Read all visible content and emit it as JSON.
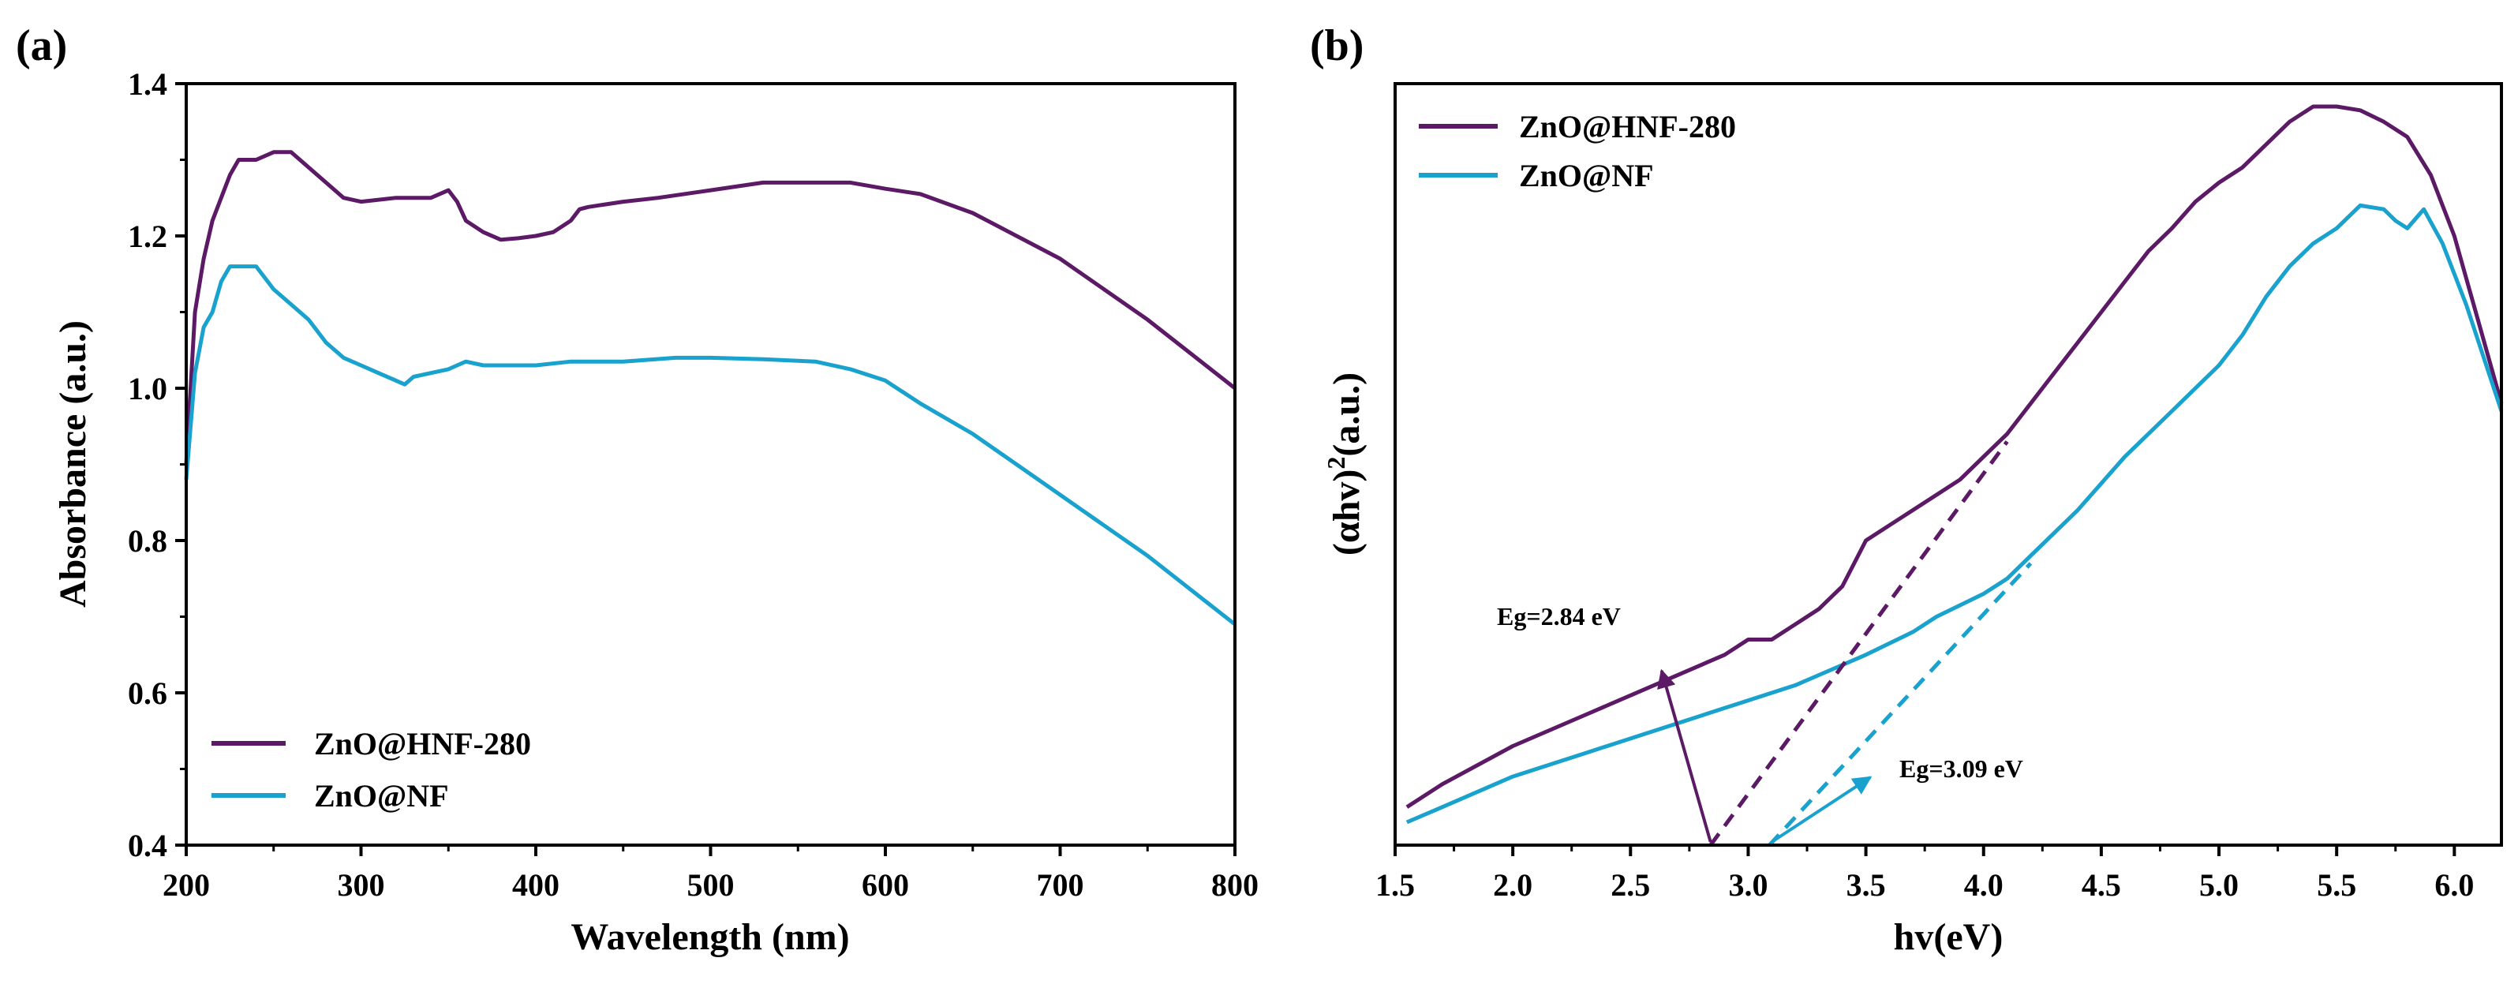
{
  "colors": {
    "purple": "#5c1a66",
    "blue": "#18a2cd",
    "axis": "#000000"
  },
  "chart_data": [
    {
      "type": "line",
      "panel_label": "(a)",
      "title": "",
      "xlabel": "Wavelength (nm)",
      "ylabel": "Absorbance (a.u.)",
      "xlim": [
        200,
        800
      ],
      "ylim": [
        0.4,
        1.4
      ],
      "xticks": [
        "200",
        "300",
        "400",
        "500",
        "600",
        "700",
        "800"
      ],
      "yticks": [
        "0.4",
        "0.6",
        "0.8",
        "1.0",
        "1.2",
        "1.4"
      ],
      "legend_position": "lower-left",
      "series": [
        {
          "name": "ZnO@HNF-280",
          "color": "#5c1a66",
          "x": [
            200,
            205,
            210,
            215,
            220,
            225,
            230,
            240,
            250,
            260,
            270,
            280,
            290,
            300,
            320,
            340,
            350,
            355,
            360,
            370,
            380,
            390,
            400,
            410,
            420,
            425,
            430,
            450,
            470,
            500,
            530,
            560,
            580,
            600,
            620,
            650,
            700,
            750,
            800
          ],
          "y": [
            0.9,
            1.1,
            1.17,
            1.22,
            1.25,
            1.28,
            1.3,
            1.3,
            1.31,
            1.31,
            1.29,
            1.27,
            1.25,
            1.245,
            1.25,
            1.25,
            1.26,
            1.245,
            1.22,
            1.205,
            1.195,
            1.197,
            1.2,
            1.205,
            1.22,
            1.235,
            1.238,
            1.245,
            1.25,
            1.26,
            1.27,
            1.27,
            1.27,
            1.262,
            1.255,
            1.23,
            1.17,
            1.09,
            1.0
          ]
        },
        {
          "name": "ZnO@NF",
          "color": "#18a2cd",
          "x": [
            200,
            205,
            210,
            215,
            220,
            225,
            230,
            240,
            250,
            260,
            270,
            280,
            290,
            300,
            310,
            320,
            325,
            330,
            340,
            350,
            355,
            360,
            370,
            380,
            390,
            400,
            420,
            450,
            480,
            500,
            530,
            560,
            580,
            600,
            620,
            650,
            700,
            750,
            800
          ],
          "y": [
            0.88,
            1.02,
            1.08,
            1.1,
            1.14,
            1.16,
            1.16,
            1.16,
            1.13,
            1.11,
            1.09,
            1.06,
            1.04,
            1.03,
            1.02,
            1.01,
            1.005,
            1.015,
            1.02,
            1.025,
            1.03,
            1.035,
            1.03,
            1.03,
            1.03,
            1.03,
            1.035,
            1.035,
            1.04,
            1.04,
            1.038,
            1.035,
            1.025,
            1.01,
            0.98,
            0.94,
            0.86,
            0.78,
            0.69
          ]
        }
      ]
    },
    {
      "type": "line",
      "panel_label": "(b)",
      "title": "",
      "xlabel": "hv(eV)",
      "ylabel_base": "(αhv)",
      "ylabel_sup": "2",
      "ylabel_unit": "(a.u.)",
      "xlim": [
        1.5,
        6.2
      ],
      "ylim": [
        0,
        1
      ],
      "xticks": [
        "1.5",
        "2.0",
        "2.5",
        "3.0",
        "3.5",
        "4.0",
        "4.5",
        "5.0",
        "5.5",
        "6.0"
      ],
      "yticks": [],
      "legend_position": "top-left",
      "series": [
        {
          "name": "ZnO@HNF-280",
          "color": "#5c1a66",
          "x": [
            1.55,
            1.7,
            2.0,
            2.3,
            2.6,
            2.9,
            3.0,
            3.1,
            3.2,
            3.3,
            3.4,
            3.45,
            3.5,
            3.6,
            3.7,
            3.8,
            3.9,
            4.0,
            4.1,
            4.2,
            4.3,
            4.4,
            4.5,
            4.6,
            4.7,
            4.8,
            4.9,
            5.0,
            5.1,
            5.2,
            5.3,
            5.4,
            5.5,
            5.6,
            5.7,
            5.8,
            5.9,
            6.0,
            6.1,
            6.2
          ],
          "y": [
            0.05,
            0.08,
            0.13,
            0.17,
            0.21,
            0.25,
            0.27,
            0.27,
            0.29,
            0.31,
            0.34,
            0.37,
            0.4,
            0.42,
            0.44,
            0.46,
            0.48,
            0.51,
            0.54,
            0.58,
            0.62,
            0.66,
            0.7,
            0.74,
            0.78,
            0.81,
            0.845,
            0.87,
            0.89,
            0.92,
            0.95,
            0.97,
            0.97,
            0.965,
            0.95,
            0.93,
            0.88,
            0.8,
            0.69,
            0.58
          ]
        },
        {
          "name": "ZnO@NF",
          "color": "#18a2cd",
          "x": [
            1.55,
            1.7,
            2.0,
            2.3,
            2.6,
            2.9,
            3.2,
            3.5,
            3.7,
            3.8,
            4.0,
            4.1,
            4.2,
            4.4,
            4.6,
            4.8,
            5.0,
            5.1,
            5.2,
            5.3,
            5.4,
            5.5,
            5.6,
            5.7,
            5.75,
            5.8,
            5.87,
            5.95,
            6.05,
            6.2
          ],
          "y": [
            0.03,
            0.05,
            0.09,
            0.12,
            0.15,
            0.18,
            0.21,
            0.25,
            0.28,
            0.3,
            0.33,
            0.35,
            0.38,
            0.44,
            0.51,
            0.57,
            0.63,
            0.67,
            0.72,
            0.76,
            0.79,
            0.81,
            0.84,
            0.835,
            0.82,
            0.81,
            0.835,
            0.79,
            0.71,
            0.57
          ]
        }
      ],
      "annotations": [
        {
          "text": "Eg=2.84 eV",
          "value": 2.84,
          "color": "#5c1a66",
          "tangent_end": [
            4.1,
            0.53
          ]
        },
        {
          "text": "Eg=3.09 eV",
          "value": 3.09,
          "color": "#18a2cd",
          "tangent_end": [
            4.2,
            0.37
          ]
        }
      ]
    }
  ]
}
